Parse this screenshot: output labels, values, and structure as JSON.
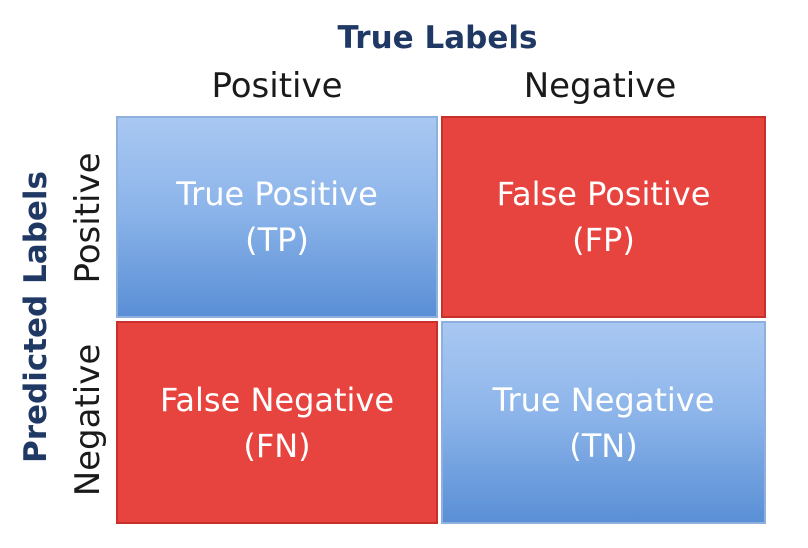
{
  "titles": {
    "true_labels": "True Labels",
    "predicted_labels": "Predicted Labels"
  },
  "columns": {
    "positive": "Positive",
    "negative": "Negative"
  },
  "rows": {
    "positive": "Positive",
    "negative": "Negative"
  },
  "cells": {
    "tp": {
      "label": "True Positive",
      "abbr": "(TP)"
    },
    "fp": {
      "label": "False Positive",
      "abbr": "(FP)"
    },
    "fn": {
      "label": "False Negative",
      "abbr": "(FN)"
    },
    "tn": {
      "label": "True Negative",
      "abbr": "(TN)"
    }
  },
  "colors": {
    "correct": "#8db5ea",
    "incorrect": "#e8443f",
    "title_text": "#1f3864"
  }
}
